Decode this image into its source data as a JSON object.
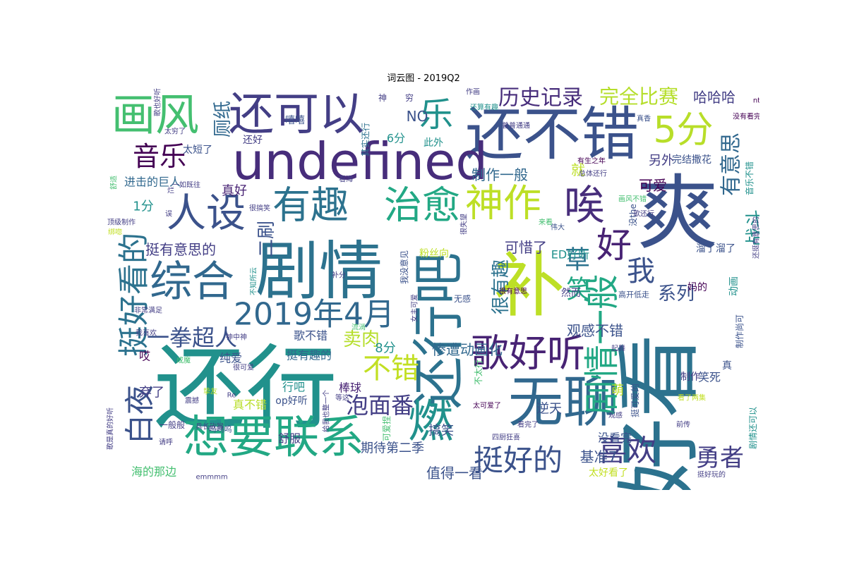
{
  "chart_data": {
    "type": "wordcloud",
    "title": "词云图 - 2019Q2",
    "colors": {
      "background": "#ffffff",
      "palette": "viridis"
    },
    "words": [
      {
        "text": "还行",
        "weight": 100,
        "color": "#21918c"
      },
      {
        "text": "好看",
        "weight": 95,
        "color": "#2c728e"
      },
      {
        "text": "爽",
        "weight": 92,
        "color": "#3b528b"
      },
      {
        "text": "剧情",
        "weight": 86,
        "color": "#2c728e"
      },
      {
        "text": "补",
        "weight": 84,
        "color": "#bddf26"
      },
      {
        "text": "还不错",
        "weight": 80,
        "color": "#3b528b"
      },
      {
        "text": "undefined",
        "weight": 78,
        "color": "#472d7b"
      },
      {
        "text": "还行吧",
        "weight": 75,
        "color": "#2c728e"
      },
      {
        "text": "无聊",
        "weight": 72,
        "color": "#31688e"
      },
      {
        "text": "想要联系",
        "weight": 70,
        "color": "#22a884"
      },
      {
        "text": "画风",
        "weight": 66,
        "color": "#44bf70"
      },
      {
        "text": "还可以",
        "weight": 64,
        "color": "#433e85"
      },
      {
        "text": "燃",
        "weight": 63,
        "color": "#21918c"
      },
      {
        "text": "综合",
        "weight": 61,
        "color": "#31688e"
      },
      {
        "text": "歌好听",
        "weight": 60,
        "color": "#482374"
      },
      {
        "text": "治愈",
        "weight": 60,
        "color": "#22a884"
      },
      {
        "text": "有趣",
        "weight": 59,
        "color": "#2c728e"
      },
      {
        "text": "人设",
        "weight": 58,
        "color": "#3b528b"
      },
      {
        "text": "神作",
        "weight": 56,
        "color": "#bddf26"
      },
      {
        "text": "唉",
        "weight": 55,
        "color": "#472d7b"
      },
      {
        "text": "好",
        "weight": 54,
        "color": "#482374"
      },
      {
        "text": "5分",
        "weight": 53,
        "color": "#b8de29"
      },
      {
        "text": "剧情一般",
        "weight": 52,
        "color": "#22a884"
      },
      {
        "text": "2019年4月",
        "weight": 50,
        "color": "#31688e"
      },
      {
        "text": "挺好看的",
        "weight": 49,
        "color": "#2c728e"
      },
      {
        "text": "乐",
        "weight": 48,
        "color": "#21918c"
      },
      {
        "text": "喜欢",
        "weight": 47,
        "color": "#433e85"
      },
      {
        "text": "挺好的",
        "weight": 46,
        "color": "#3b528b"
      },
      {
        "text": "白夜",
        "weight": 45,
        "color": "#3b528b"
      },
      {
        "text": "不错",
        "weight": 44,
        "color": "#c2df23"
      },
      {
        "text": "我",
        "weight": 44,
        "color": "#3b528b"
      },
      {
        "text": "音乐",
        "weight": 42,
        "color": "#440154"
      },
      {
        "text": "草",
        "weight": 42,
        "color": "#2c728e"
      },
      {
        "text": "笑",
        "weight": 41,
        "color": "#22a884"
      },
      {
        "text": "勇者",
        "weight": 40,
        "color": "#433e85"
      },
      {
        "text": "一拳超人",
        "weight": 39,
        "color": "#3b528b"
      },
      {
        "text": "泡面番",
        "weight": 38,
        "color": "#433e85"
      },
      {
        "text": "历史记录",
        "weight": 38,
        "color": "#472d7b"
      },
      {
        "text": "完全比赛",
        "weight": 37,
        "color": "#b5de2b"
      },
      {
        "text": "有意思",
        "weight": 36,
        "color": "#31688e"
      },
      {
        "text": "很有趣",
        "weight": 35,
        "color": "#2c728e"
      },
      {
        "text": "二刷",
        "weight": 34,
        "color": "#3b528b"
      },
      {
        "text": "厕纸",
        "weight": 33,
        "color": "#31688e"
      },
      {
        "text": "卖肉",
        "weight": 33,
        "color": "#b5de2b"
      },
      {
        "text": "系列",
        "weight": 32,
        "color": "#3b528b"
      },
      {
        "text": "战斗",
        "weight": 31,
        "color": "#21918c"
      },
      {
        "text": "哈哈哈",
        "weight": 30,
        "color": "#433e85"
      },
      {
        "text": "挺有意思的",
        "weight": 29,
        "color": "#433e85"
      },
      {
        "text": "观感不错",
        "weight": 28,
        "color": "#3b528b"
      },
      {
        "text": "惨遭动画化",
        "weight": 28,
        "color": "#31688e"
      },
      {
        "text": "制作一般",
        "weight": 27,
        "color": "#31688e"
      },
      {
        "text": "可爱",
        "weight": 27,
        "color": "#440154"
      },
      {
        "text": "可惜了",
        "weight": 27,
        "color": "#433e85"
      },
      {
        "text": "基准7",
        "weight": 27,
        "color": "#3b528b"
      },
      {
        "text": "值得一看",
        "weight": 26,
        "color": "#3b528b"
      },
      {
        "text": "期待第二季",
        "weight": 25,
        "color": "#3b528b"
      },
      {
        "text": "8分",
        "weight": 25,
        "color": "#21918c"
      },
      {
        "text": "1分",
        "weight": 25,
        "color": "#21918c"
      },
      {
        "text": "就",
        "weight": 25,
        "color": "#bddf26"
      },
      {
        "text": "NO",
        "weight": 24,
        "color": "#3b528b"
      },
      {
        "text": "ED好听",
        "weight": 24,
        "color": "#21918c"
      },
      {
        "text": "萌",
        "weight": 23,
        "color": "#bddf26"
      },
      {
        "text": "另外",
        "weight": 23,
        "color": "#433e85"
      },
      {
        "text": "搞笑",
        "weight": 23,
        "color": "#3b528b"
      },
      {
        "text": "真好",
        "weight": 22,
        "color": "#482374"
      },
      {
        "text": "没看完",
        "weight": 22,
        "color": "#3b528b"
      },
      {
        "text": "6分",
        "weight": 22,
        "color": "#21918c"
      },
      {
        "text": "笑死",
        "weight": 21,
        "color": "#3b528b"
      },
      {
        "text": "弃了",
        "weight": 21,
        "color": "#433e85"
      },
      {
        "text": "逆天",
        "weight": 21,
        "color": "#3b528b"
      },
      {
        "text": "棒球",
        "weight": 20,
        "color": "#482374"
      },
      {
        "text": "挺有趣的",
        "weight": 20,
        "color": "#31688e"
      },
      {
        "text": "进击的巨人",
        "weight": 20,
        "color": "#31688e"
      },
      {
        "text": "海的那边",
        "weight": 20,
        "color": "#44bf70"
      },
      {
        "text": "行吧",
        "weight": 20,
        "color": "#21918c"
      },
      {
        "text": "纯爱",
        "weight": 20,
        "color": "#3b528b"
      },
      {
        "text": "歌不错",
        "weight": 19,
        "color": "#3b528b"
      },
      {
        "text": "舒服",
        "weight": 19,
        "color": "#433e85"
      },
      {
        "text": "真不错",
        "weight": 18,
        "color": "#b8de29"
      },
      {
        "text": "完结撒花",
        "weight": 18,
        "color": "#3b528b"
      },
      {
        "text": "溜了溜了",
        "weight": 18,
        "color": "#3b528b"
      },
      {
        "text": "嘻嘻",
        "weight": 18,
        "color": "#3b528b"
      },
      {
        "text": "粉丝向",
        "weight": 18,
        "color": "#bddf26"
      },
      {
        "text": "还好",
        "weight": 17,
        "color": "#433e85"
      },
      {
        "text": "太短了",
        "weight": 17,
        "color": "#3b528b"
      },
      {
        "text": "此外",
        "weight": 17,
        "color": "#21918c"
      },
      {
        "text": "真",
        "weight": 17,
        "color": "#3b528b"
      },
      {
        "text": "太好看了",
        "weight": 17,
        "color": "#c2df23"
      },
      {
        "text": "制作",
        "weight": 17,
        "color": "#433e85"
      },
      {
        "text": "动画",
        "weight": 16,
        "color": "#21918c"
      },
      {
        "text": "op好听",
        "weight": 16,
        "color": "#3b528b"
      },
      {
        "text": "一般般",
        "weight": 16,
        "color": "#433e85"
      },
      {
        "text": "没the",
        "weight": 16,
        "color": "#3b528b"
      },
      {
        "text": "然而",
        "weight": 16,
        "color": "#433e85"
      },
      {
        "text": "妈的",
        "weight": 16,
        "color": "#440154"
      },
      {
        "text": "哎",
        "weight": 16,
        "color": "#440154"
      },
      {
        "text": "可爱捏",
        "weight": 15,
        "color": "#44bf70"
      },
      {
        "text": "我没意见",
        "weight": 15,
        "color": "#3b528b"
      },
      {
        "text": "不太行",
        "weight": 15,
        "color": "#44bf70"
      },
      {
        "text": "挺可爱的",
        "weight": 15,
        "color": "#3b528b"
      },
      {
        "text": "其实还行",
        "weight": 15,
        "color": "#2c728e"
      },
      {
        "text": "音乐不错",
        "weight": 14,
        "color": "#21918c"
      },
      {
        "text": "剧情还可以",
        "weight": 14,
        "color": "#21918c"
      },
      {
        "text": "制作尚可",
        "weight": 14,
        "color": "#3b528b"
      },
      {
        "text": "无感",
        "weight": 14,
        "color": "#3b528b"
      },
      {
        "text": "呜呜呜",
        "weight": 13,
        "color": "#3b528b"
      },
      {
        "text": "高开低走",
        "weight": 13,
        "color": "#3b528b"
      },
      {
        "text": "兵长砍猴",
        "weight": 12,
        "color": "#433e85"
      },
      {
        "text": "四厨狂喜",
        "weight": 12,
        "color": "#433e85"
      },
      {
        "text": "穷",
        "weight": 12,
        "color": "#433e85"
      },
      {
        "text": "神",
        "weight": 12,
        "color": "#433e85"
      },
      {
        "text": "作画",
        "weight": 12,
        "color": "#433e85"
      },
      {
        "text": "还算有趣",
        "weight": 11,
        "color": "#21918c"
      },
      {
        "text": "普普通通",
        "weight": 11,
        "color": "#433e85"
      },
      {
        "text": "有生之年",
        "weight": 11,
        "color": "#440154"
      },
      {
        "text": "总体还行",
        "weight": 11,
        "color": "#433e85"
      },
      {
        "text": "真香",
        "weight": 11,
        "color": "#3b528b"
      },
      {
        "text": "没有看完",
        "weight": 11,
        "color": "#440154"
      },
      {
        "text": "ntr",
        "weight": 11,
        "color": "#440154"
      },
      {
        "text": "歌也好听",
        "weight": 10,
        "color": "#433e85"
      },
      {
        "text": "太穷了",
        "weight": 10,
        "color": "#433e85"
      },
      {
        "text": "画风不错",
        "weight": 10,
        "color": "#44bf70"
      },
      {
        "text": "歌还行",
        "weight": 10,
        "color": "#433e85"
      },
      {
        "text": "伟大",
        "weight": 10,
        "color": "#3b528b"
      },
      {
        "text": "来看",
        "weight": 10,
        "color": "#44bf70"
      },
      {
        "text": "很有意思",
        "weight": 10,
        "color": "#440154"
      },
      {
        "text": "很失望",
        "weight": 10,
        "color": "#433e85"
      },
      {
        "text": "补分",
        "weight": 10,
        "color": "#433e85"
      },
      {
        "text": "不知所云",
        "weight": 10,
        "color": "#21918c"
      },
      {
        "text": "还挺有意思的",
        "weight": 10,
        "color": "#433e85"
      },
      {
        "text": "看海",
        "weight": 10,
        "color": "#433e85"
      },
      {
        "text": "一如既往",
        "weight": 10,
        "color": "#433e85"
      },
      {
        "text": "很搞笑",
        "weight": 10,
        "color": "#433e85"
      },
      {
        "text": "顶级制作",
        "weight": 10,
        "color": "#433e85"
      },
      {
        "text": "绑唿",
        "weight": 10,
        "color": "#c2df23"
      },
      {
        "text": "非常满足",
        "weight": 10,
        "color": "#433e85"
      },
      {
        "text": "我喜欢",
        "weight": 10,
        "color": "#433e85"
      },
      {
        "text": "神中神",
        "weight": 10,
        "color": "#433e85"
      },
      {
        "text": "成魔",
        "weight": 10,
        "color": "#44bf70"
      },
      {
        "text": "很可爱",
        "weight": 10,
        "color": "#433e85"
      },
      {
        "text": "挚友",
        "weight": 10,
        "color": "#b8de29"
      },
      {
        "text": "Re",
        "weight": 10,
        "color": "#433e85"
      },
      {
        "text": "震撼",
        "weight": 10,
        "color": "#433e85"
      },
      {
        "text": "等这",
        "weight": 10,
        "color": "#433e85"
      },
      {
        "text": "给我也整一个",
        "weight": 10,
        "color": "#433e85"
      },
      {
        "text": "歌是真的好听",
        "weight": 10,
        "color": "#433e85"
      },
      {
        "text": "请呼",
        "weight": 10,
        "color": "#433e85"
      },
      {
        "text": "emmmm",
        "weight": 10,
        "color": "#433e85"
      },
      {
        "text": "流淌",
        "weight": 10,
        "color": "#44bf70"
      },
      {
        "text": "女主可爱",
        "weight": 10,
        "color": "#433e85"
      },
      {
        "text": "太可爱了",
        "weight": 10,
        "color": "#440154"
      },
      {
        "text": "看完了",
        "weight": 10,
        "color": "#433e85"
      },
      {
        "text": "起舞",
        "weight": 10,
        "color": "#433e85"
      },
      {
        "text": "观感",
        "weight": 10,
        "color": "#433e85"
      },
      {
        "text": "前传",
        "weight": 10,
        "color": "#433e85"
      },
      {
        "text": "挺好玩的",
        "weight": 10,
        "color": "#433e85"
      },
      {
        "text": "看了两集",
        "weight": 10,
        "color": "#c2df23"
      },
      {
        "text": "舒适",
        "weight": 10,
        "color": "#44bf70"
      },
      {
        "text": "误",
        "weight": 10,
        "color": "#433e85"
      },
      {
        "text": "烂",
        "weight": 10,
        "color": "#433e85"
      }
    ]
  }
}
